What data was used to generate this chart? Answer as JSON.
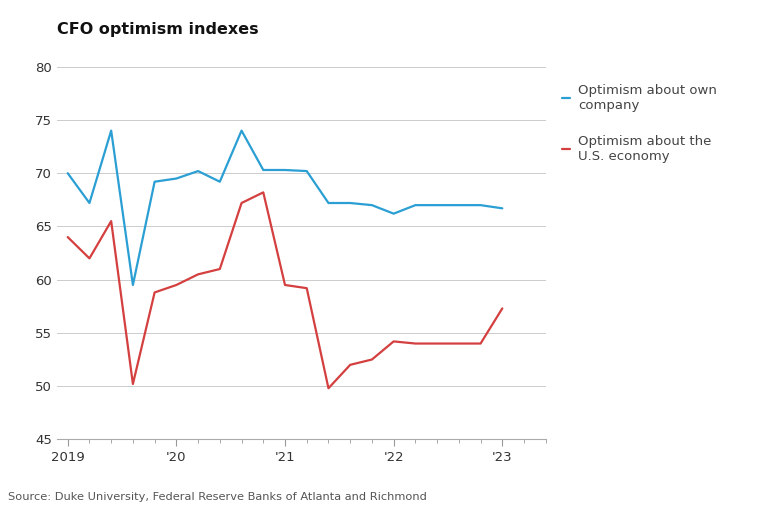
{
  "title": "CFO optimism indexes",
  "source": "Source: Duke University, Federal Reserve Banks of Atlanta and Richmond",
  "ylim": [
    45,
    82
  ],
  "yticks": [
    45,
    50,
    55,
    60,
    65,
    70,
    75,
    80
  ],
  "legend_labels": [
    "Optimism about own\ncompany",
    "Optimism about the\nU.S. economy"
  ],
  "line_colors": [
    "#2b9fd4",
    "#d43f3f"
  ],
  "background_color": "#ffffff",
  "xtick_labels": [
    "2019",
    "'20",
    "'21",
    "'22",
    "'23"
  ],
  "xtick_positions": [
    0,
    5,
    10,
    15,
    20
  ],
  "xlim": [
    -0.5,
    22
  ],
  "blue_x": [
    0,
    1,
    2,
    3,
    4,
    5,
    6,
    7,
    8,
    9,
    10,
    11,
    12,
    13,
    14,
    15,
    16,
    17,
    18,
    19,
    20
  ],
  "blue_y": [
    70,
    67.2,
    74,
    59.5,
    69.2,
    69.5,
    70.2,
    69.2,
    74,
    70.3,
    70.3,
    70.2,
    67.2,
    67.2,
    67.0,
    66.2,
    67.0,
    67.0,
    67.0,
    67.0,
    66.7
  ],
  "red_x": [
    0,
    1,
    2,
    3,
    4,
    5,
    6,
    7,
    8,
    9,
    10,
    11,
    12,
    13,
    14,
    15,
    16,
    17,
    18,
    19,
    20
  ],
  "red_y": [
    64,
    62,
    65.5,
    50.2,
    58.8,
    59.5,
    60.5,
    61,
    67.2,
    68.2,
    59.5,
    59.2,
    49.8,
    52,
    52.5,
    54.2,
    54,
    54,
    54,
    54,
    57.3
  ]
}
